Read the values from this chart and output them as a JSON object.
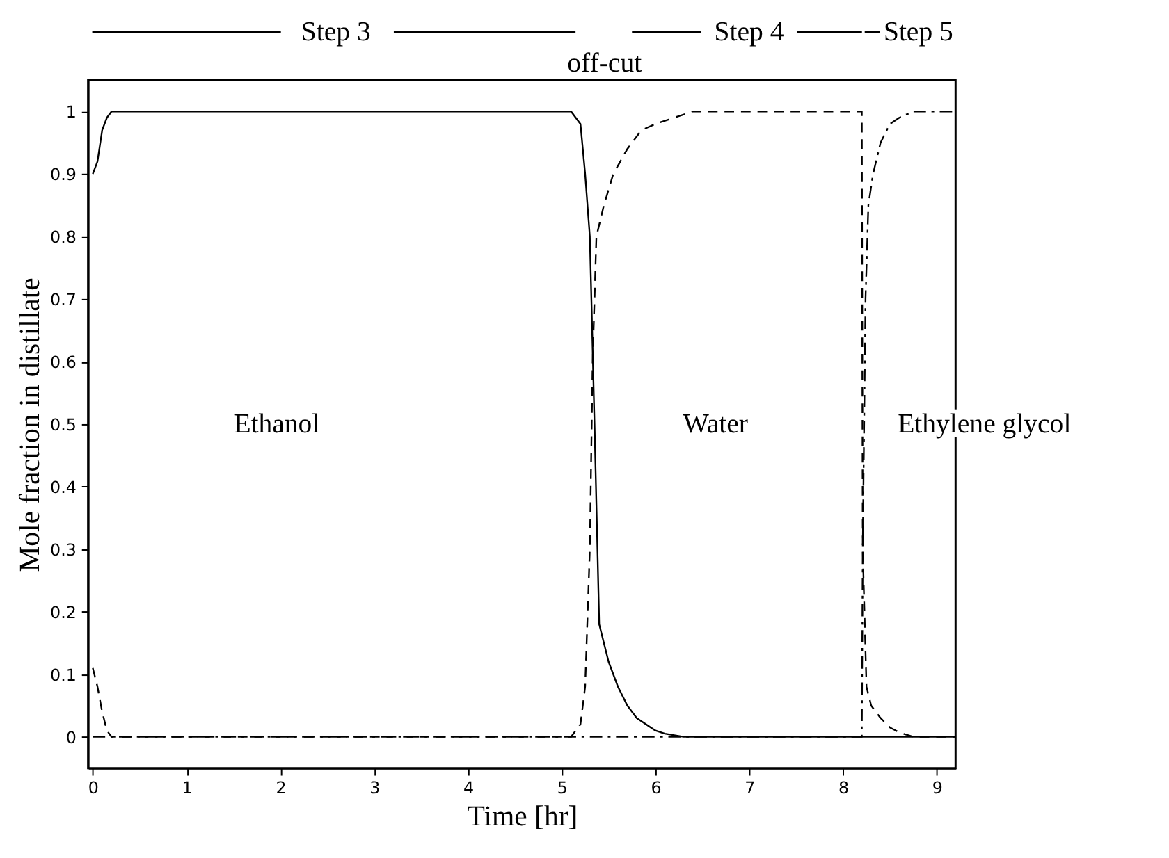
{
  "chart_data": {
    "type": "line",
    "xlabel": "Time [hr]",
    "ylabel": "Mole fraction in distillate",
    "xlim": [
      -0.05,
      9.2
    ],
    "ylim": [
      -0.05,
      1.05
    ],
    "xticks": [
      0,
      1,
      2,
      3,
      4,
      5,
      6,
      7,
      8,
      9
    ],
    "yticks": [
      0,
      0.1,
      0.2,
      0.3,
      0.4,
      0.5,
      0.6,
      0.7,
      0.8,
      0.9,
      1
    ],
    "grid": false,
    "marker": "none",
    "annotations": [
      "Ethanol",
      "Water",
      "Ethylene glycol",
      "Step 3",
      "off-cut",
      "Step 4",
      "Step 5"
    ],
    "series": [
      {
        "color": "#000000",
        "line_style": "solid",
        "x": [
          0,
          0.05,
          0.1,
          0.15,
          0.2,
          0.3,
          5.1,
          5.2,
          5.25,
          5.3,
          5.35,
          5.4,
          5.5,
          5.6,
          5.7,
          5.8,
          5.9,
          6.0,
          6.1,
          6.3,
          9.2
        ],
        "values": [
          0.9,
          0.92,
          0.97,
          0.99,
          1,
          1,
          1,
          0.98,
          0.9,
          0.8,
          0.5,
          0.18,
          0.12,
          0.08,
          0.05,
          0.03,
          0.02,
          0.01,
          0.005,
          0,
          0
        ]
      },
      {
        "color": "#000000",
        "line_style": "dashed",
        "x": [
          0,
          0.05,
          0.1,
          0.15,
          0.2,
          5.1,
          5.2,
          5.25,
          5.3,
          5.33,
          5.37,
          5.45,
          5.55,
          5.7,
          5.85,
          6.0,
          6.2,
          6.4,
          8.2,
          8.21,
          8.25,
          8.3,
          8.4,
          8.5,
          8.6,
          8.75,
          9.2
        ],
        "values": [
          0.11,
          0.08,
          0.04,
          0.01,
          0,
          0,
          0.02,
          0.08,
          0.3,
          0.6,
          0.8,
          0.85,
          0.9,
          0.94,
          0.97,
          0.98,
          0.99,
          1,
          1,
          0.3,
          0.08,
          0.05,
          0.03,
          0.015,
          0.007,
          0,
          0
        ]
      },
      {
        "color": "#000000",
        "line_style": "dashdot",
        "x": [
          0,
          8.2,
          8.21,
          8.24,
          8.27,
          8.32,
          8.4,
          8.5,
          8.6,
          8.75,
          9.2
        ],
        "values": [
          0,
          0,
          0.3,
          0.7,
          0.85,
          0.9,
          0.95,
          0.98,
          0.99,
          1,
          1
        ]
      }
    ]
  }
}
